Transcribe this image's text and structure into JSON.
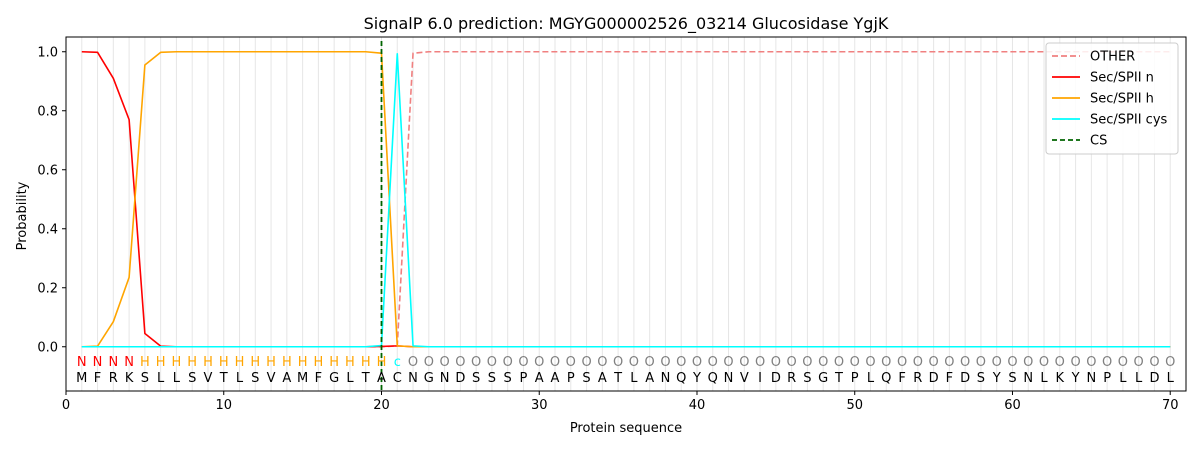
{
  "chart_data": {
    "type": "line",
    "title": "SignalP 6.0 prediction: MGYG000002526_03214 Glucosidase YgjK",
    "xlabel": "Protein sequence",
    "ylabel": "Probability",
    "xlim": [
      0,
      71
    ],
    "ylim": [
      -0.15,
      1.05
    ],
    "x_ticks": [
      0,
      10,
      20,
      30,
      40,
      50,
      60,
      70
    ],
    "y_ticks": [
      0.0,
      0.2,
      0.4,
      0.6,
      0.8,
      1.0
    ],
    "x_tick_labels": [
      "0",
      "10",
      "20",
      "30",
      "40",
      "50",
      "60",
      "70"
    ],
    "y_tick_labels": [
      "0.0",
      "0.2",
      "0.4",
      "0.6",
      "0.8",
      "1.0"
    ],
    "grid": "vertical lines at each residue",
    "legend_position": "top-right",
    "sequence": [
      "M",
      "F",
      "R",
      "K",
      "S",
      "L",
      "L",
      "S",
      "V",
      "T",
      "L",
      "S",
      "V",
      "A",
      "M",
      "F",
      "G",
      "L",
      "T",
      "A",
      "C",
      "N",
      "G",
      "N",
      "D",
      "S",
      "S",
      "S",
      "P",
      "A",
      "A",
      "P",
      "S",
      "A",
      "T",
      "L",
      "A",
      "N",
      "Q",
      "Y",
      "Q",
      "N",
      "V",
      "I",
      "D",
      "R",
      "S",
      "G",
      "T",
      "P",
      "L",
      "Q",
      "F",
      "R",
      "D",
      "F",
      "D",
      "S",
      "Y",
      "S",
      "N",
      "L",
      "K",
      "Y",
      "N",
      "P",
      "L",
      "L",
      "D",
      "L"
    ],
    "labels": [
      "N",
      "N",
      "N",
      "N",
      "H",
      "H",
      "H",
      "H",
      "H",
      "H",
      "H",
      "H",
      "H",
      "H",
      "H",
      "H",
      "H",
      "H",
      "H",
      "H",
      "C",
      "O",
      "O",
      "O",
      "O",
      "O",
      "O",
      "O",
      "O",
      "O",
      "O",
      "O",
      "O",
      "O",
      "O",
      "O",
      "O",
      "O",
      "O",
      "O",
      "O",
      "O",
      "O",
      "O",
      "O",
      "O",
      "O",
      "O",
      "O",
      "O",
      "O",
      "O",
      "O",
      "O",
      "O",
      "O",
      "O",
      "O",
      "O",
      "O",
      "O",
      "O",
      "O",
      "O",
      "O",
      "O",
      "O",
      "O",
      "O",
      "O"
    ],
    "label_colors": {
      "N": "#ff0000",
      "H": "#ffa500",
      "C": "#00ffff",
      "O": "#808080"
    },
    "series": [
      {
        "name": "OTHER",
        "color": "#f08080",
        "dash": "dashed",
        "values": [
          0,
          0,
          0,
          0,
          0,
          0,
          0,
          0,
          0,
          0,
          0,
          0,
          0,
          0,
          0,
          0,
          0,
          0,
          0,
          0,
          0.003,
          0.995,
          1,
          1,
          1,
          1,
          1,
          1,
          1,
          1,
          1,
          1,
          1,
          1,
          1,
          1,
          1,
          1,
          1,
          1,
          1,
          1,
          1,
          1,
          1,
          1,
          1,
          1,
          1,
          1,
          1,
          1,
          1,
          1,
          1,
          1,
          1,
          1,
          1,
          1,
          1,
          1,
          1,
          1,
          1,
          1,
          1,
          1,
          1,
          1
        ]
      },
      {
        "name": "Sec/SPII n",
        "color": "#ff0000",
        "dash": "solid",
        "values": [
          1.0,
          0.998,
          0.91,
          0.77,
          0.045,
          0.002,
          0,
          0,
          0,
          0,
          0,
          0,
          0,
          0,
          0,
          0,
          0,
          0,
          0,
          0.001,
          0.003,
          0,
          0,
          0,
          0,
          0,
          0,
          0,
          0,
          0,
          0,
          0,
          0,
          0,
          0,
          0,
          0,
          0,
          0,
          0,
          0,
          0,
          0,
          0,
          0,
          0,
          0,
          0,
          0,
          0,
          0,
          0,
          0,
          0,
          0,
          0,
          0,
          0,
          0,
          0,
          0,
          0,
          0,
          0,
          0,
          0,
          0,
          0,
          0,
          0
        ]
      },
      {
        "name": "Sec/SPII h",
        "color": "#ffa500",
        "dash": "solid",
        "values": [
          0,
          0.002,
          0.085,
          0.235,
          0.955,
          0.998,
          1.0,
          1.0,
          1.0,
          1.0,
          1.0,
          1.0,
          1.0,
          1.0,
          1.0,
          1.0,
          1.0,
          1.0,
          1.0,
          0.995,
          0.003,
          0,
          0,
          0,
          0,
          0,
          0,
          0,
          0,
          0,
          0,
          0,
          0,
          0,
          0,
          0,
          0,
          0,
          0,
          0,
          0,
          0,
          0,
          0,
          0,
          0,
          0,
          0,
          0,
          0,
          0,
          0,
          0,
          0,
          0,
          0,
          0,
          0,
          0,
          0,
          0,
          0,
          0,
          0,
          0,
          0,
          0,
          0,
          0,
          0
        ]
      },
      {
        "name": "Sec/SPII cys",
        "color": "#00ffff",
        "dash": "solid",
        "values": [
          0,
          0,
          0,
          0,
          0,
          0,
          0,
          0,
          0,
          0,
          0,
          0,
          0,
          0,
          0,
          0,
          0,
          0,
          0,
          0.004,
          0.993,
          0.003,
          0,
          0,
          0,
          0,
          0,
          0,
          0,
          0,
          0,
          0,
          0,
          0,
          0,
          0,
          0,
          0,
          0,
          0,
          0,
          0,
          0,
          0,
          0,
          0,
          0,
          0,
          0,
          0,
          0,
          0,
          0,
          0,
          0,
          0,
          0,
          0,
          0,
          0,
          0,
          0,
          0,
          0,
          0,
          0,
          0,
          0,
          0,
          0
        ]
      }
    ],
    "cs": {
      "name": "CS",
      "x": 20,
      "color": "#006400"
    }
  }
}
